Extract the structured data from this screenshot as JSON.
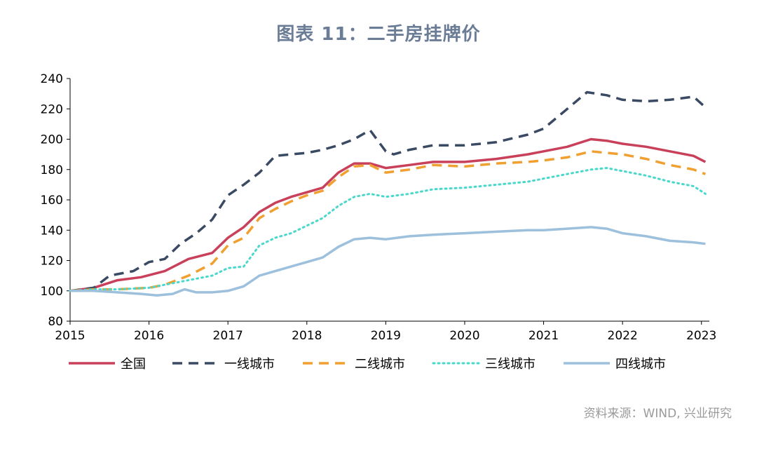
{
  "title": "图表 11：二手房挂牌价",
  "source": "资料来源：WIND, 兴业研究",
  "chart_data": {
    "type": "line",
    "xlabel": "",
    "ylabel": "",
    "ylim": [
      80,
      240
    ],
    "yticks": [
      80,
      100,
      120,
      140,
      160,
      180,
      200,
      220,
      240
    ],
    "xlim": [
      2015,
      2023.1
    ],
    "xticks": [
      "2015",
      "2016",
      "2017",
      "2018",
      "2019",
      "2020",
      "2021",
      "2022",
      "2023"
    ],
    "grid": false,
    "legend": "bottom",
    "series": [
      {
        "name": "全国",
        "color": "#c9405b",
        "style": "solid",
        "x": [
          2015.0,
          2015.3,
          2015.6,
          2015.9,
          2016.2,
          2016.5,
          2016.8,
          2017.0,
          2017.2,
          2017.4,
          2017.6,
          2017.8,
          2018.0,
          2018.2,
          2018.4,
          2018.6,
          2018.8,
          2019.0,
          2019.3,
          2019.6,
          2020.0,
          2020.4,
          2020.8,
          2021.0,
          2021.3,
          2021.6,
          2021.8,
          2022.0,
          2022.3,
          2022.6,
          2022.9,
          2023.05
        ],
        "y": [
          100,
          102,
          107,
          109,
          113,
          121,
          125,
          135,
          142,
          152,
          158,
          162,
          165,
          168,
          178,
          184,
          184,
          181,
          183,
          185,
          185,
          187,
          190,
          192,
          195,
          200,
          199,
          197,
          195,
          192,
          189,
          185
        ]
      },
      {
        "name": "一线城市",
        "color": "#3b4a63",
        "style": "dashed",
        "x": [
          2015.0,
          2015.3,
          2015.5,
          2015.8,
          2016.0,
          2016.2,
          2016.4,
          2016.6,
          2016.8,
          2017.0,
          2017.2,
          2017.4,
          2017.6,
          2017.8,
          2018.0,
          2018.2,
          2018.4,
          2018.6,
          2018.8,
          2018.9,
          2019.0,
          2019.1,
          2019.3,
          2019.6,
          2020.0,
          2020.4,
          2020.8,
          2021.0,
          2021.3,
          2021.55,
          2021.8,
          2022.0,
          2022.3,
          2022.6,
          2022.9,
          2023.05
        ],
        "y": [
          100,
          102,
          110,
          113,
          119,
          121,
          131,
          138,
          147,
          163,
          170,
          178,
          189,
          190,
          191,
          193,
          196,
          200,
          206,
          199,
          192,
          190,
          193,
          196,
          196,
          198,
          203,
          207,
          220,
          231,
          229,
          226,
          225,
          226,
          228,
          221
        ]
      },
      {
        "name": "二线城市",
        "color": "#f0a030",
        "style": "dashed",
        "x": [
          2015.0,
          2015.3,
          2015.6,
          2016.0,
          2016.2,
          2016.5,
          2016.8,
          2017.0,
          2017.2,
          2017.4,
          2017.6,
          2017.8,
          2018.0,
          2018.2,
          2018.4,
          2018.6,
          2018.8,
          2019.0,
          2019.3,
          2019.6,
          2020.0,
          2020.4,
          2020.8,
          2021.0,
          2021.3,
          2021.6,
          2021.8,
          2022.0,
          2022.3,
          2022.6,
          2022.9,
          2023.05
        ],
        "y": [
          100,
          101,
          101,
          102,
          104,
          110,
          118,
          130,
          135,
          148,
          154,
          159,
          163,
          166,
          175,
          182,
          183,
          178,
          180,
          183,
          182,
          184,
          185,
          186,
          188,
          192,
          191,
          190,
          187,
          183,
          180,
          177
        ]
      },
      {
        "name": "三线城市",
        "color": "#4ad8cc",
        "style": "dotted",
        "x": [
          2015.0,
          2015.3,
          2015.6,
          2016.0,
          2016.3,
          2016.6,
          2016.8,
          2017.0,
          2017.2,
          2017.4,
          2017.6,
          2017.8,
          2018.0,
          2018.2,
          2018.4,
          2018.6,
          2018.8,
          2019.0,
          2019.3,
          2019.6,
          2020.0,
          2020.4,
          2020.8,
          2021.0,
          2021.3,
          2021.6,
          2021.8,
          2022.0,
          2022.3,
          2022.6,
          2022.9,
          2023.05
        ],
        "y": [
          100,
          101,
          101,
          102,
          105,
          108,
          110,
          115,
          116,
          130,
          135,
          138,
          143,
          148,
          156,
          162,
          164,
          162,
          164,
          167,
          168,
          170,
          172,
          174,
          177,
          180,
          181,
          179,
          176,
          172,
          169,
          164
        ]
      },
      {
        "name": "四线城市",
        "color": "#9dc0dd",
        "style": "solid",
        "x": [
          2015.0,
          2015.3,
          2015.6,
          2015.9,
          2016.1,
          2016.3,
          2016.45,
          2016.6,
          2016.8,
          2017.0,
          2017.2,
          2017.4,
          2017.6,
          2017.8,
          2018.0,
          2018.2,
          2018.4,
          2018.6,
          2018.8,
          2019.0,
          2019.3,
          2019.6,
          2020.0,
          2020.4,
          2020.8,
          2021.0,
          2021.3,
          2021.6,
          2021.8,
          2022.0,
          2022.3,
          2022.6,
          2022.9,
          2023.05
        ],
        "y": [
          100,
          100,
          99,
          98,
          97,
          98,
          101,
          99,
          99,
          100,
          103,
          110,
          113,
          116,
          119,
          122,
          129,
          134,
          135,
          134,
          136,
          137,
          138,
          139,
          140,
          140,
          141,
          142,
          141,
          138,
          136,
          133,
          132,
          131
        ]
      }
    ]
  }
}
